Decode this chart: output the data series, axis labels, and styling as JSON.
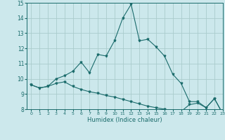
{
  "xlabel": "Humidex (Indice chaleur)",
  "ylabel": "",
  "background_color": "#cce8ec",
  "grid_color": "#aacccc",
  "line_color": "#1a6b6b",
  "x_values": [
    0,
    1,
    2,
    3,
    4,
    5,
    6,
    7,
    8,
    9,
    10,
    11,
    12,
    13,
    14,
    15,
    16,
    17,
    18,
    19,
    20,
    21,
    22,
    23
  ],
  "line1_y": [
    9.6,
    9.4,
    9.5,
    10.0,
    10.2,
    10.5,
    11.1,
    10.4,
    11.6,
    11.5,
    12.5,
    14.0,
    14.9,
    12.5,
    12.6,
    12.1,
    11.5,
    10.3,
    9.7,
    8.5,
    8.5,
    8.1,
    8.7,
    7.7
  ],
  "line2_y": [
    9.6,
    9.4,
    9.5,
    9.7,
    9.8,
    9.5,
    9.3,
    9.15,
    9.05,
    8.9,
    8.8,
    8.65,
    8.5,
    8.35,
    8.2,
    8.1,
    8.0,
    7.9,
    7.85,
    8.3,
    8.4,
    8.1,
    8.7,
    7.7
  ],
  "ylim": [
    8,
    15
  ],
  "xlim": [
    -0.5,
    23
  ],
  "yticks": [
    8,
    9,
    10,
    11,
    12,
    13,
    14,
    15
  ],
  "xticks": [
    0,
    1,
    2,
    3,
    4,
    5,
    6,
    7,
    8,
    9,
    10,
    11,
    12,
    13,
    14,
    15,
    16,
    17,
    18,
    19,
    20,
    21,
    22,
    23
  ],
  "tick_fontsize": 5,
  "xlabel_fontsize": 6
}
